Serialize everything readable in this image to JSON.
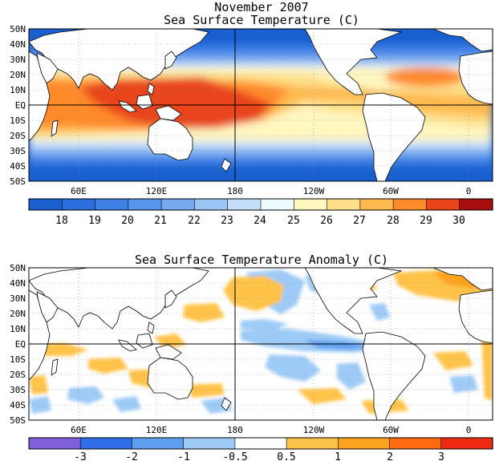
{
  "title": "November 2007",
  "panels": [
    {
      "id": "sst",
      "subtitle": "Sea Surface Temperature (C)",
      "lat_labels": [
        "50N",
        "40N",
        "30N",
        "20N",
        "10N",
        "EQ",
        "10S",
        "20S",
        "30S",
        "40S",
        "50S"
      ],
      "lon_labels": [
        "60E",
        "120E",
        "180",
        "120W",
        "60W",
        "0"
      ],
      "colorbar": {
        "labels": [
          "18",
          "19",
          "20",
          "21",
          "22",
          "23",
          "24",
          "25",
          "26",
          "27",
          "28",
          "29",
          "30"
        ],
        "colors": [
          "#1a5fd0",
          "#2b6fdd",
          "#3d80e6",
          "#5794ec",
          "#75a9f0",
          "#9cc4f5",
          "#c5defa",
          "#effaff",
          "#fff6c0",
          "#ffe08a",
          "#ffb94f",
          "#ff8a2b",
          "#e8451a",
          "#a70f0f"
        ]
      }
    },
    {
      "id": "anom",
      "subtitle": "Sea Surface Temperature Anomaly (C)",
      "lat_labels": [
        "50N",
        "40N",
        "30N",
        "20N",
        "10N",
        "EQ",
        "10S",
        "20S",
        "30S",
        "40S",
        "50S"
      ],
      "lon_labels": [
        "60E",
        "120E",
        "180",
        "120W",
        "60W",
        "0"
      ],
      "colorbar": {
        "labels": [
          "-3",
          "-2",
          "-1",
          "-0.5",
          "0.5",
          "1",
          "2",
          "3"
        ],
        "colors": [
          "#7f5fdc",
          "#2e6ee6",
          "#5e9ff0",
          "#9dcaf6",
          "#ffffff",
          "#ffc34a",
          "#ffa21f",
          "#ff6a12",
          "#ee2a12"
        ]
      }
    }
  ]
}
